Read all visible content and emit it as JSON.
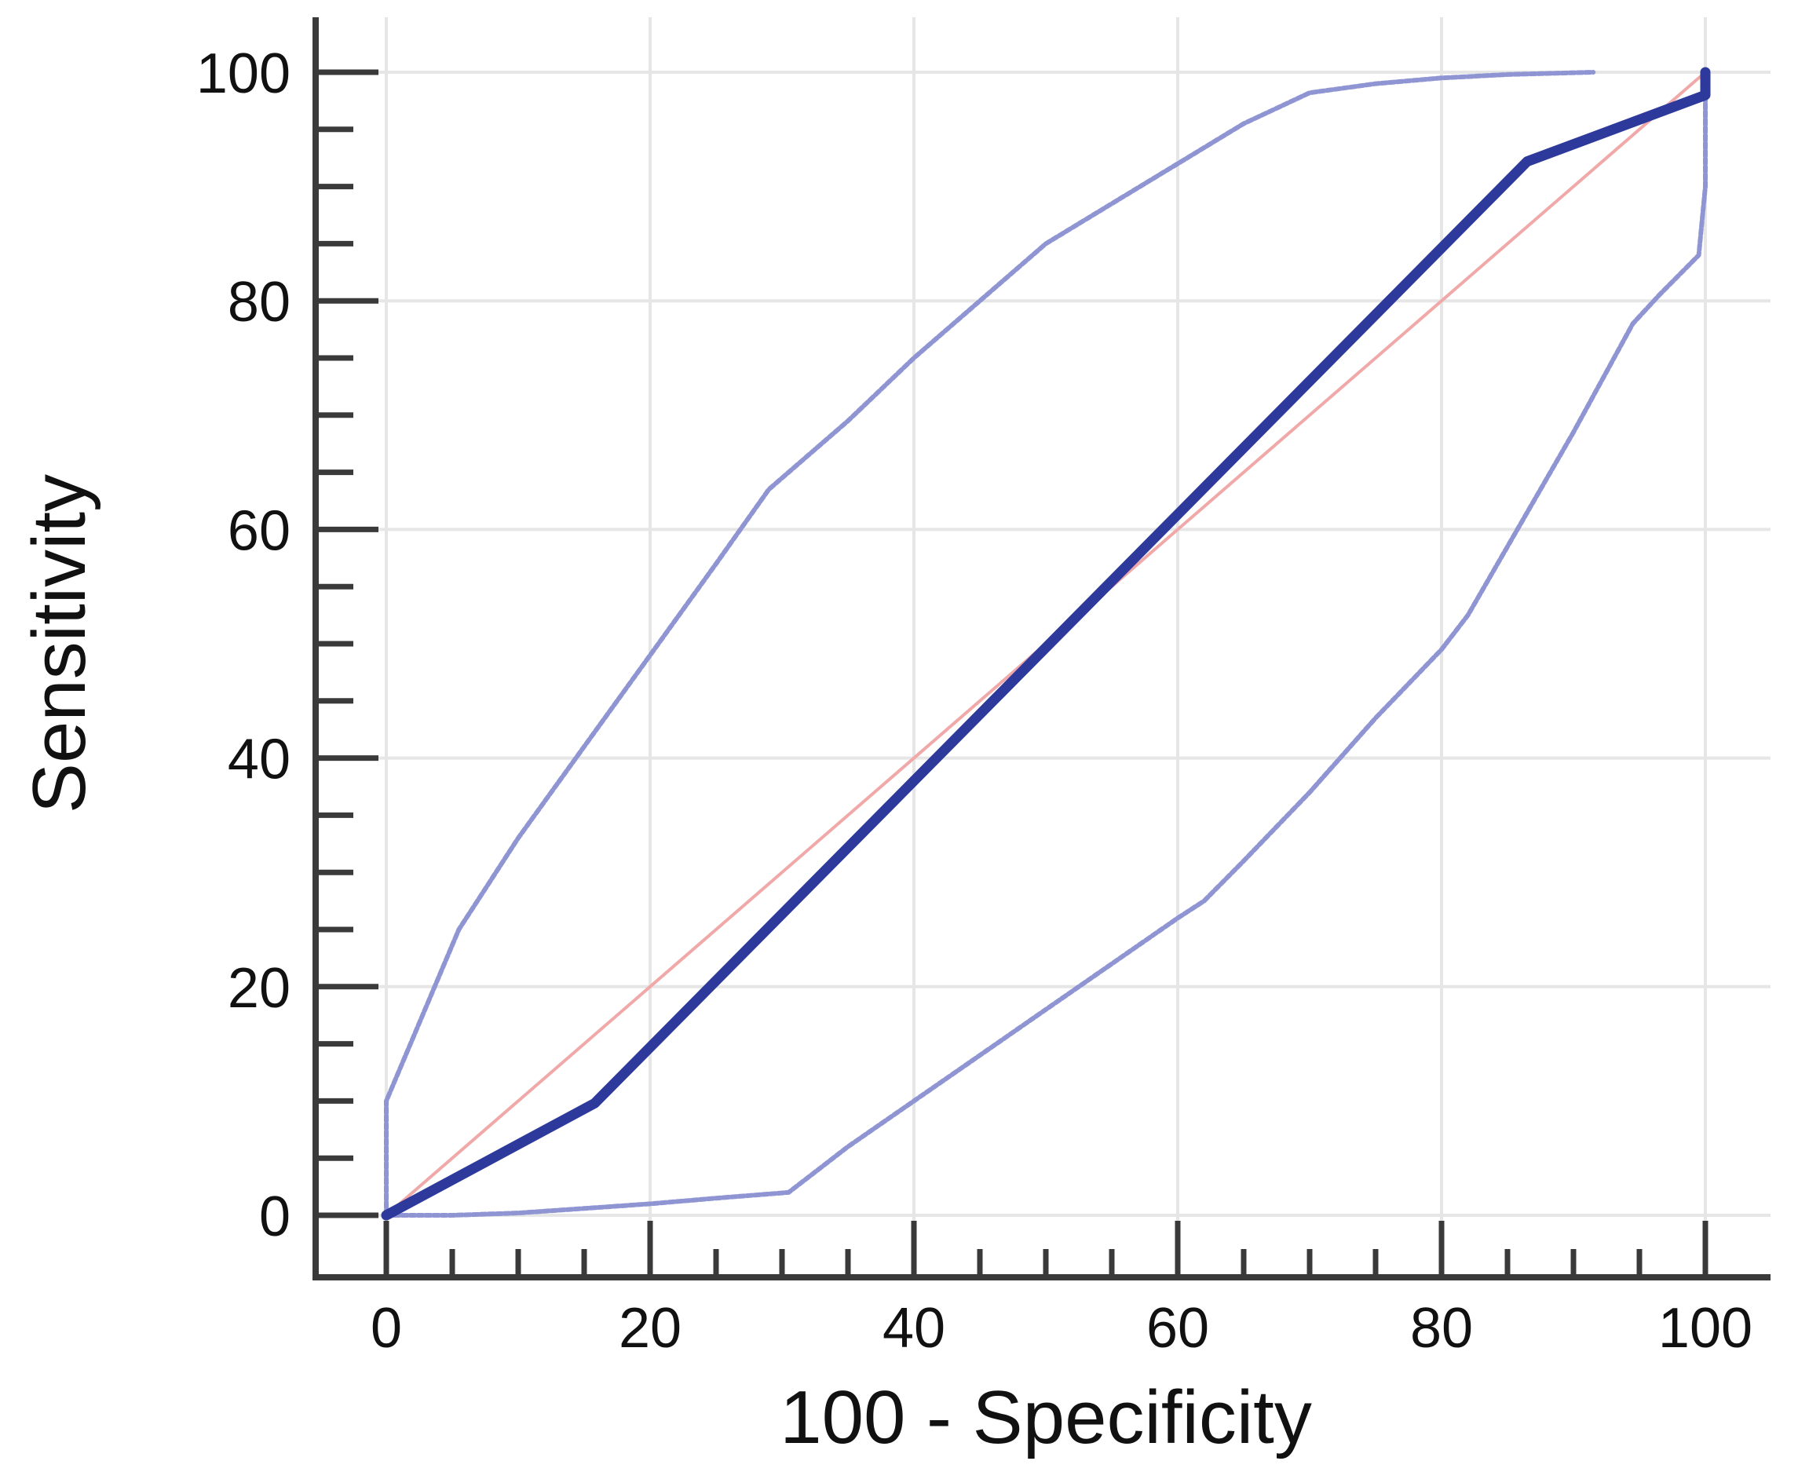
{
  "chart_data": {
    "type": "line",
    "title": "",
    "xlabel": "100 - Specificity",
    "ylabel": "Sensitivity",
    "xlim": [
      0,
      100
    ],
    "ylim": [
      0,
      100
    ],
    "xticks": [
      0,
      20,
      40,
      60,
      80,
      100
    ],
    "yticks": [
      0,
      20,
      40,
      60,
      80,
      100
    ],
    "grid": true,
    "colors": {
      "roc": "#2d3a9c",
      "ci": "#8f95d3",
      "reference": "#f0a8a8",
      "axis": "#3a3a3a",
      "grid": "#e6e6e6"
    },
    "series": [
      {
        "role": "roc",
        "x": [
          0,
          15.8,
          86.5,
          100,
          100
        ],
        "y": [
          0,
          9.8,
          92.2,
          98.0,
          100
        ]
      },
      {
        "role": "ci-upper",
        "x": [
          0,
          0,
          5.5,
          10,
          15,
          20,
          25,
          29,
          35,
          40,
          45,
          50,
          55,
          60,
          65,
          70,
          75,
          80,
          85,
          91.5
        ],
        "y": [
          0,
          10,
          25,
          33,
          41,
          49,
          57,
          63.5,
          69.5,
          75,
          80,
          85,
          88.5,
          92,
          95.5,
          98.2,
          99,
          99.5,
          99.8,
          100
        ]
      },
      {
        "role": "ci-lower",
        "x": [
          0,
          5,
          10,
          15,
          20,
          25,
          30.5,
          35,
          40,
          45,
          50,
          55,
          60,
          62,
          65,
          70,
          75,
          80,
          82,
          85,
          90,
          94.5,
          96.5,
          99.5,
          100,
          100
        ],
        "y": [
          0,
          0,
          0.2,
          0.6,
          1.0,
          1.5,
          2.0,
          6.0,
          10.0,
          14.0,
          18.0,
          22.0,
          26.0,
          27.5,
          31.0,
          37.0,
          43.5,
          49.5,
          52.5,
          58.5,
          68.5,
          78.0,
          80.5,
          84.0,
          90.0,
          100
        ]
      },
      {
        "role": "reference",
        "x": [
          0,
          100
        ],
        "y": [
          0,
          100
        ]
      }
    ]
  }
}
